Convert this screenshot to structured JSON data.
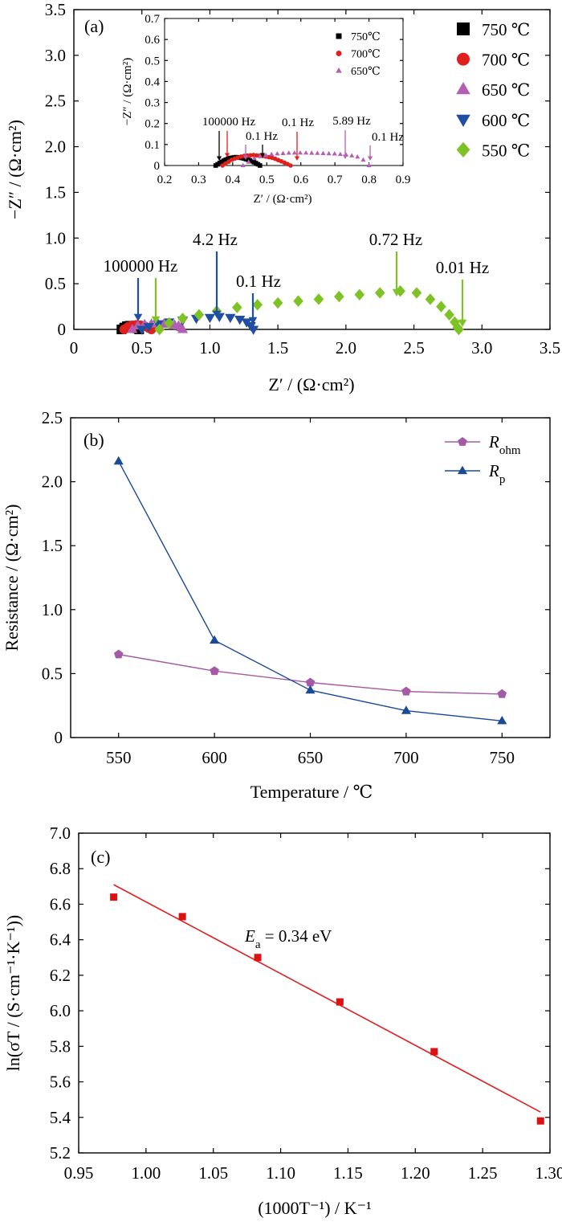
{
  "colors": {
    "c750": "#000000",
    "c700": "#e0201c",
    "c650": "#b45fb4",
    "c600": "#1f4ea3",
    "c550": "#7ec225",
    "rohm": "#a55aa5",
    "rp": "#1a4a96",
    "fit": "#e02020",
    "pts": "#dd1111"
  },
  "chart_data": [
    {
      "type": "scatter",
      "panel_label": "(a)",
      "xlabel": "Z′ / (Ω·cm²)",
      "ylabel": "−Z″ / (Ω·cm²)",
      "xlim": [
        0,
        3.5
      ],
      "ylim": [
        0,
        3.5
      ],
      "xticks": [
        "0",
        "0.5",
        "1.0",
        "1.5",
        "2.0",
        "2.5",
        "3.0",
        "3.5"
      ],
      "yticks": [
        "0",
        "0.5",
        "1.0",
        "1.5",
        "2.0",
        "2.5",
        "3.0",
        "3.5"
      ],
      "legend_position": "top-right",
      "series": [
        {
          "name": "750 ℃",
          "marker": "square",
          "color": "#000000",
          "x": [
            0.35,
            0.37,
            0.39,
            0.41,
            0.43,
            0.45,
            0.47,
            0.48
          ],
          "y": [
            0.0,
            0.02,
            0.035,
            0.04,
            0.035,
            0.025,
            0.01,
            0.0
          ]
        },
        {
          "name": "700 ℃",
          "marker": "circle",
          "color": "#e0201c",
          "x": [
            0.37,
            0.4,
            0.43,
            0.46,
            0.49,
            0.52,
            0.55,
            0.57
          ],
          "y": [
            0.0,
            0.03,
            0.045,
            0.05,
            0.045,
            0.035,
            0.015,
            0.0
          ]
        },
        {
          "name": "650 ℃",
          "marker": "triangle-up",
          "color": "#b45fb4",
          "x": [
            0.43,
            0.47,
            0.52,
            0.57,
            0.62,
            0.66,
            0.7,
            0.74,
            0.77,
            0.79,
            0.8
          ],
          "y": [
            0.0,
            0.04,
            0.055,
            0.06,
            0.06,
            0.058,
            0.056,
            0.05,
            0.04,
            0.02,
            0.0
          ]
        },
        {
          "name": "600 ℃",
          "marker": "triangle-down",
          "color": "#1f4ea3",
          "x": [
            0.5,
            0.55,
            0.62,
            0.7,
            0.8,
            0.9,
            1.0,
            1.07,
            1.15,
            1.22,
            1.27,
            1.3,
            1.32
          ],
          "y": [
            0.0,
            0.03,
            0.06,
            0.08,
            0.1,
            0.12,
            0.13,
            0.14,
            0.13,
            0.11,
            0.08,
            0.04,
            0.0
          ]
        },
        {
          "name": "550 ℃",
          "marker": "diamond",
          "color": "#7ec225",
          "x": [
            0.63,
            0.7,
            0.8,
            0.92,
            1.05,
            1.2,
            1.35,
            1.5,
            1.65,
            1.8,
            1.95,
            2.1,
            2.25,
            2.4,
            2.52,
            2.62,
            2.7,
            2.76,
            2.8,
            2.82,
            2.83
          ],
          "y": [
            0.0,
            0.07,
            0.12,
            0.16,
            0.2,
            0.24,
            0.27,
            0.29,
            0.31,
            0.33,
            0.36,
            0.38,
            0.4,
            0.42,
            0.4,
            0.33,
            0.25,
            0.16,
            0.08,
            0.02,
            0.0
          ]
        }
      ],
      "annotations": [
        {
          "text": "100000 Hz",
          "x": 0.5,
          "color": "#1f4ea3"
        },
        {
          "text": "4.2 Hz",
          "x": 1.07,
          "color": "#1f4ea3"
        },
        {
          "text": "0.1 Hz",
          "x": 1.32,
          "color": "#1f4ea3"
        },
        {
          "text": "0.72 Hz",
          "x": 2.4,
          "color": "#7ec225"
        },
        {
          "text": "0.01 Hz",
          "x": 2.85,
          "color": "#7ec225"
        }
      ],
      "inset": {
        "xlabel": "Z′ / (Ω·cm²)",
        "ylabel": "−Z″ / (Ω·cm²)",
        "xlim": [
          0.2,
          0.9
        ],
        "ylim": [
          0,
          0.7
        ],
        "xticks": [
          "0.2",
          "0.3",
          "0.4",
          "0.5",
          "0.6",
          "0.7",
          "0.8",
          "0.9"
        ],
        "yticks": [
          "0",
          "0.1",
          "0.2",
          "0.3",
          "0.4",
          "0.5",
          "0.6",
          "0.7"
        ],
        "legend": [
          "750℃",
          "700℃",
          "650℃"
        ],
        "annotations": [
          {
            "text": "100000 Hz",
            "x": 0.35
          },
          {
            "text": "0.1 Hz",
            "x": 0.48
          },
          {
            "text": "0.1 Hz",
            "x": 0.57
          },
          {
            "text": "5.89 Hz",
            "x": 0.73
          },
          {
            "text": "0.1 Hz",
            "x": 0.8
          }
        ]
      }
    },
    {
      "type": "line",
      "panel_label": "(b)",
      "xlabel": "Temperature / ℃",
      "ylabel": "Resistance / (Ω·cm²)",
      "xlim": [
        525,
        775
      ],
      "ylim": [
        0,
        2.5
      ],
      "xticks": [
        "550",
        "600",
        "650",
        "700",
        "750"
      ],
      "yticks": [
        "0",
        "0.5",
        "1.0",
        "1.5",
        "2.0",
        "2.5"
      ],
      "legend_position": "top-right",
      "x": [
        550,
        600,
        650,
        700,
        750
      ],
      "series": [
        {
          "name": "R",
          "sub": "ohm",
          "marker": "pentagon",
          "color": "#a55aa5",
          "values": [
            0.65,
            0.52,
            0.43,
            0.36,
            0.34
          ]
        },
        {
          "name": "R",
          "sub": "p",
          "marker": "triangle-up",
          "color": "#1a4a96",
          "values": [
            2.16,
            0.76,
            0.37,
            0.21,
            0.13
          ]
        }
      ]
    },
    {
      "type": "scatter",
      "panel_label": "(c)",
      "xlabel": "(1000T⁻¹) / K⁻¹",
      "ylabel": "ln(σT / (S·cm⁻¹·K⁻¹))",
      "xlim": [
        0.95,
        1.3
      ],
      "ylim": [
        5.2,
        7.0
      ],
      "xticks": [
        "0.95",
        "1.00",
        "1.05",
        "1.10",
        "1.15",
        "1.20",
        "1.25",
        "1.30"
      ],
      "yticks": [
        "5.2",
        "5.4",
        "5.6",
        "5.8",
        "6.0",
        "6.2",
        "6.4",
        "6.6",
        "6.8",
        "7.0"
      ],
      "annotation": {
        "prefix": "E",
        "sub": "a",
        "text": " = 0.34 eV"
      },
      "points": {
        "x": [
          0.976,
          1.027,
          1.083,
          1.144,
          1.214,
          1.293
        ],
        "y": [
          6.64,
          6.53,
          6.3,
          6.05,
          5.77,
          5.38
        ]
      },
      "fit": {
        "x": [
          0.976,
          1.293
        ],
        "y": [
          6.71,
          5.43
        ]
      }
    }
  ]
}
